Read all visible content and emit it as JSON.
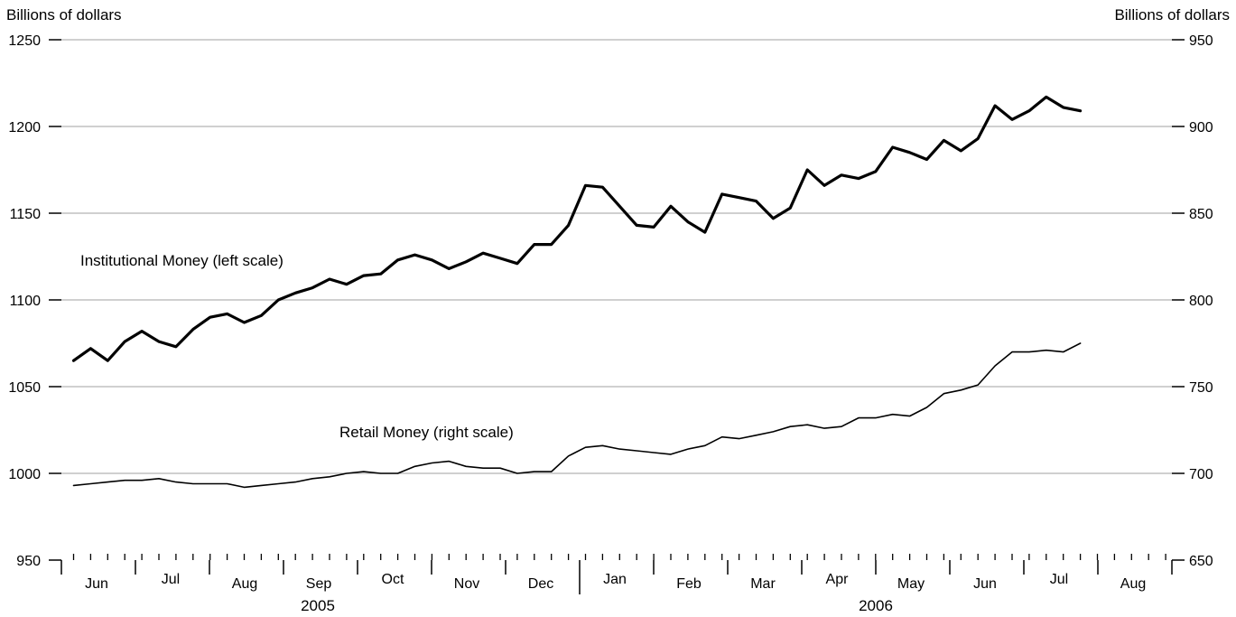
{
  "chart_data": {
    "type": "line",
    "left_axis": {
      "label": "Billions of dollars",
      "range": [
        950,
        1250
      ],
      "ticks": [
        950,
        1000,
        1050,
        1100,
        1150,
        1200,
        1250
      ]
    },
    "right_axis": {
      "label": "Billions of dollars",
      "range": [
        650,
        950
      ],
      "ticks": [
        650,
        700,
        750,
        800,
        850,
        900,
        950
      ]
    },
    "grid": true,
    "x_axis": {
      "unit": "week",
      "months": [
        "Jun",
        "Jul",
        "Aug",
        "Sep",
        "Oct",
        "Nov",
        "Dec",
        "Jan",
        "Feb",
        "Mar",
        "Apr",
        "May",
        "Jun",
        "Jul",
        "Aug"
      ],
      "years": [
        {
          "label": "2005"
        },
        {
          "label": "2006"
        }
      ]
    },
    "series": [
      {
        "name": "Institutional Money (left scale)",
        "axis": "left",
        "color": "#000000",
        "values": [
          1065,
          1072,
          1065,
          1076,
          1082,
          1076,
          1073,
          1083,
          1090,
          1092,
          1087,
          1091,
          1100,
          1104,
          1107,
          1112,
          1109,
          1114,
          1115,
          1123,
          1126,
          1123,
          1118,
          1122,
          1127,
          1124,
          1121,
          1132,
          1132,
          1143,
          1166,
          1165,
          1154,
          1143,
          1142,
          1154,
          1145,
          1139,
          1161,
          1159,
          1157,
          1147,
          1153,
          1175,
          1166,
          1172,
          1170,
          1174,
          1188,
          1185,
          1181,
          1192,
          1186,
          1193,
          1212,
          1204,
          1209,
          1217,
          1211,
          1209
        ]
      },
      {
        "name": "Retail Money (right scale)",
        "axis": "right",
        "color": "#000000",
        "values": [
          693,
          694,
          695,
          696,
          696,
          697,
          695,
          694,
          694,
          694,
          692,
          693,
          694,
          695,
          697,
          698,
          700,
          701,
          700,
          700,
          704,
          706,
          707,
          704,
          703,
          703,
          700,
          701,
          701,
          710,
          715,
          716,
          714,
          713,
          712,
          711,
          714,
          716,
          721,
          720,
          722,
          724,
          727,
          728,
          726,
          727,
          732,
          732,
          734,
          733,
          738,
          746,
          748,
          751,
          762,
          770,
          770,
          771,
          770,
          775
        ]
      }
    ]
  }
}
